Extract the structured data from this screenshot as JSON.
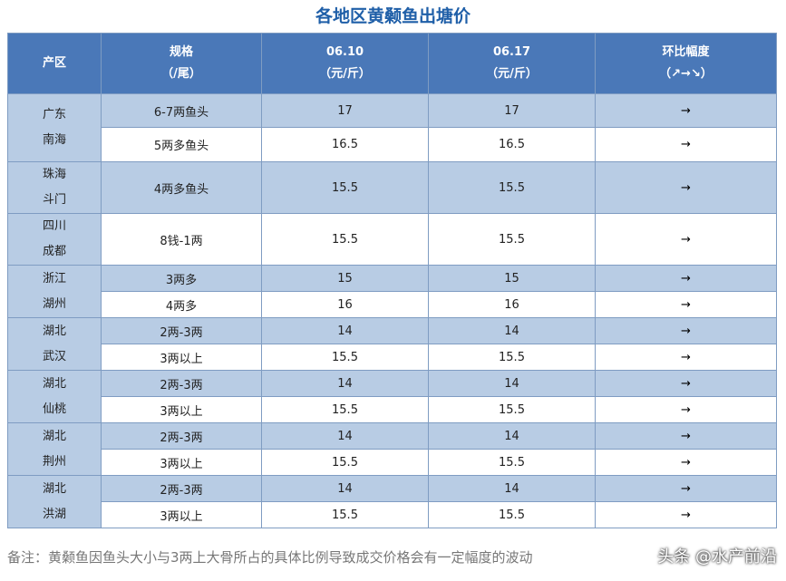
{
  "title": "各地区黄颡鱼出塘价",
  "header": {
    "region": "产区",
    "spec": [
      "规格",
      "（/尾）"
    ],
    "d1": [
      "06.10",
      "（元/斤）"
    ],
    "d2": [
      "06.17",
      "（元/斤）"
    ],
    "trend": [
      "环比幅度",
      "（↗→↘）"
    ]
  },
  "rows": [
    {
      "region": [
        "广东",
        "南海"
      ],
      "span": 2,
      "spec": "6-7两鱼头",
      "p1": "17",
      "p2": "17",
      "trend": "→",
      "shade": "blue"
    },
    {
      "spec": "5两多鱼头",
      "p1": "16.5",
      "p2": "16.5",
      "trend": "→",
      "shade": "white"
    },
    {
      "region": [
        "珠海",
        "斗门"
      ],
      "span": 1,
      "spec": "4两多鱼头",
      "p1": "15.5",
      "p2": "15.5",
      "trend": "→",
      "shade": "blue"
    },
    {
      "region": [
        "四川",
        "成都"
      ],
      "span": 1,
      "spec": "8钱-1两",
      "p1": "15.5",
      "p2": "15.5",
      "trend": "→",
      "shade": "white"
    },
    {
      "region": [
        "浙江",
        "湖州"
      ],
      "span": 2,
      "spec": "3两多",
      "p1": "15",
      "p2": "15",
      "trend": "→",
      "shade": "blue"
    },
    {
      "spec": "4两多",
      "p1": "16",
      "p2": "16",
      "trend": "→",
      "shade": "white"
    },
    {
      "region": [
        "湖北",
        "武汉"
      ],
      "span": 2,
      "spec": "2两-3两",
      "p1": "14",
      "p2": "14",
      "trend": "→",
      "shade": "blue"
    },
    {
      "spec": "3两以上",
      "p1": "15.5",
      "p2": "15.5",
      "trend": "→",
      "shade": "white"
    },
    {
      "region": [
        "湖北",
        "仙桃"
      ],
      "span": 2,
      "spec": "2两-3两",
      "p1": "14",
      "p2": "14",
      "trend": "→",
      "shade": "blue"
    },
    {
      "spec": "3两以上",
      "p1": "15.5",
      "p2": "15.5",
      "trend": "→",
      "shade": "white"
    },
    {
      "region": [
        "湖北",
        "荆州"
      ],
      "span": 2,
      "spec": "2两-3两",
      "p1": "14",
      "p2": "14",
      "trend": "→",
      "shade": "blue"
    },
    {
      "spec": "3两以上",
      "p1": "15.5",
      "p2": "15.5",
      "trend": "→",
      "shade": "white"
    },
    {
      "region": [
        "湖北",
        "洪湖"
      ],
      "span": 2,
      "spec": "2两-3两",
      "p1": "14",
      "p2": "14",
      "trend": "→",
      "shade": "blue"
    },
    {
      "spec": "3两以上",
      "p1": "15.5",
      "p2": "15.5",
      "trend": "→",
      "shade": "white"
    }
  ],
  "note": "备注：黄颡鱼因鱼头大小与3两上大骨所占的具体比例导致成交价格会有一定幅度的波动",
  "watermark": "头条 @水产前沿"
}
